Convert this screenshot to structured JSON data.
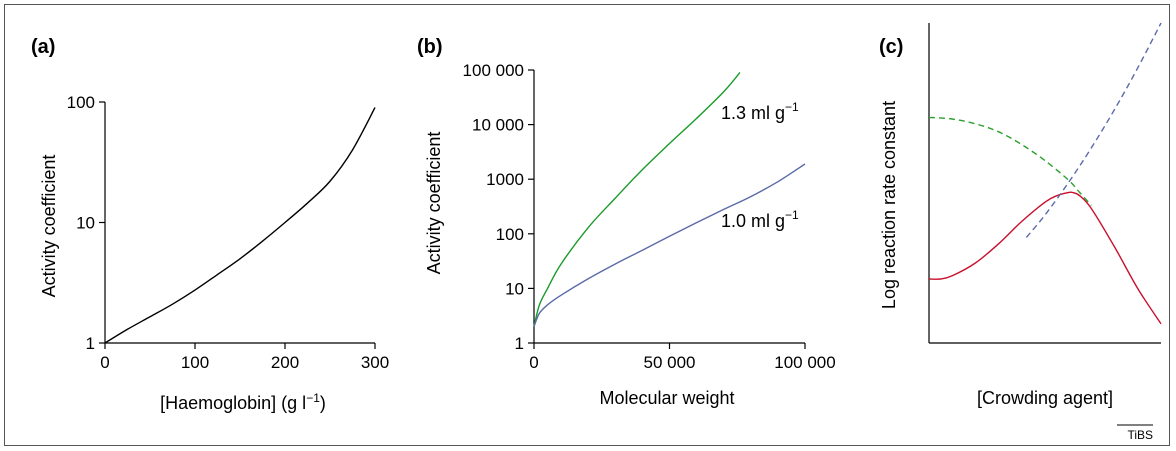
{
  "credit": "TiBS",
  "chart_data": [
    {
      "panel_label": "(a)",
      "type": "line",
      "xlabel": "[Haemoglobin] (g l",
      "xlabel_sup": "−1",
      "xlabel_end": ")",
      "ylabel": "Activity coefficient",
      "xlim": [
        0,
        300
      ],
      "ylim": [
        1,
        100
      ],
      "yscale": "log",
      "x_ticks": [
        0,
        100,
        200,
        300
      ],
      "x_tick_labels": [
        "0",
        "100",
        "200",
        "300"
      ],
      "y_ticks": [
        1,
        10,
        100
      ],
      "y_tick_labels": [
        "1",
        "10",
        "100"
      ],
      "grid": false,
      "series": [
        {
          "color": "#000000",
          "dashed": false,
          "x": [
            0,
            25,
            50,
            75,
            100,
            125,
            150,
            175,
            200,
            225,
            250,
            275,
            300
          ],
          "y": [
            1.0,
            1.3,
            1.65,
            2.1,
            2.75,
            3.7,
            5.0,
            7.0,
            10.0,
            14.5,
            22.0,
            40.0,
            90.0
          ]
        }
      ]
    },
    {
      "panel_label": "(b)",
      "type": "line",
      "xlabel": "Molecular weight",
      "ylabel": "Activity coefficient",
      "xlim": [
        0,
        100000
      ],
      "ylim": [
        1,
        100000
      ],
      "yscale": "log",
      "x_ticks": [
        0,
        50000,
        100000
      ],
      "x_tick_labels": [
        "0",
        "50 000",
        "100 000"
      ],
      "y_ticks": [
        1,
        10,
        100,
        1000,
        10000,
        100000
      ],
      "y_tick_labels": [
        "1",
        "10",
        "100",
        "1000",
        "10 000",
        "100 000"
      ],
      "grid": false,
      "series": [
        {
          "name_text": "1.3 ml g",
          "name_sup": "−1",
          "color": "#1a9a2a",
          "dashed": false,
          "x": [
            0,
            2000,
            5000,
            10000,
            20000,
            30000,
            40000,
            50000,
            60000,
            70000,
            76000
          ],
          "y": [
            2.0,
            5.0,
            10.0,
            28,
            130,
            450,
            1500,
            4500,
            13000,
            40000,
            90000
          ]
        },
        {
          "name_text": "1.0 ml g",
          "name_sup": "−1",
          "color": "#5a6aa8",
          "dashed": false,
          "x": [
            0,
            2000,
            5000,
            10000,
            20000,
            30000,
            40000,
            50000,
            60000,
            70000,
            80000,
            90000,
            100000
          ],
          "y": [
            2.0,
            3.5,
            5.0,
            7.5,
            15,
            28,
            50,
            90,
            160,
            280,
            480,
            900,
            1900
          ]
        }
      ]
    },
    {
      "panel_label": "(c)",
      "type": "line",
      "xlabel": "[Crowding agent]",
      "ylabel": "Log reaction rate constant",
      "xlim": [
        0,
        1
      ],
      "ylim": [
        0,
        1
      ],
      "x_ticks": [],
      "y_ticks": [],
      "grid": false,
      "series": [
        {
          "color": "#c8102e",
          "dashed": false,
          "x": [
            0,
            0.05,
            0.1,
            0.2,
            0.3,
            0.4,
            0.5,
            0.55,
            0.6,
            0.62,
            0.65,
            0.7,
            0.8,
            0.9,
            1.0
          ],
          "y": [
            0.2,
            0.2,
            0.21,
            0.25,
            0.31,
            0.38,
            0.44,
            0.46,
            0.47,
            0.47,
            0.46,
            0.42,
            0.3,
            0.17,
            0.06
          ]
        },
        {
          "color": "#2ca02c",
          "dashed": true,
          "x": [
            0,
            0.1,
            0.2,
            0.3,
            0.4,
            0.5,
            0.6,
            0.65,
            0.7
          ],
          "y": [
            0.705,
            0.7,
            0.685,
            0.66,
            0.62,
            0.57,
            0.51,
            0.47,
            0.43
          ]
        },
        {
          "color": "#5a6aa8",
          "dashed": true,
          "x": [
            0.42,
            0.5,
            0.6,
            0.7,
            0.8,
            0.9,
            1.0
          ],
          "y": [
            0.33,
            0.4,
            0.5,
            0.61,
            0.73,
            0.86,
            1.0
          ]
        }
      ]
    }
  ]
}
